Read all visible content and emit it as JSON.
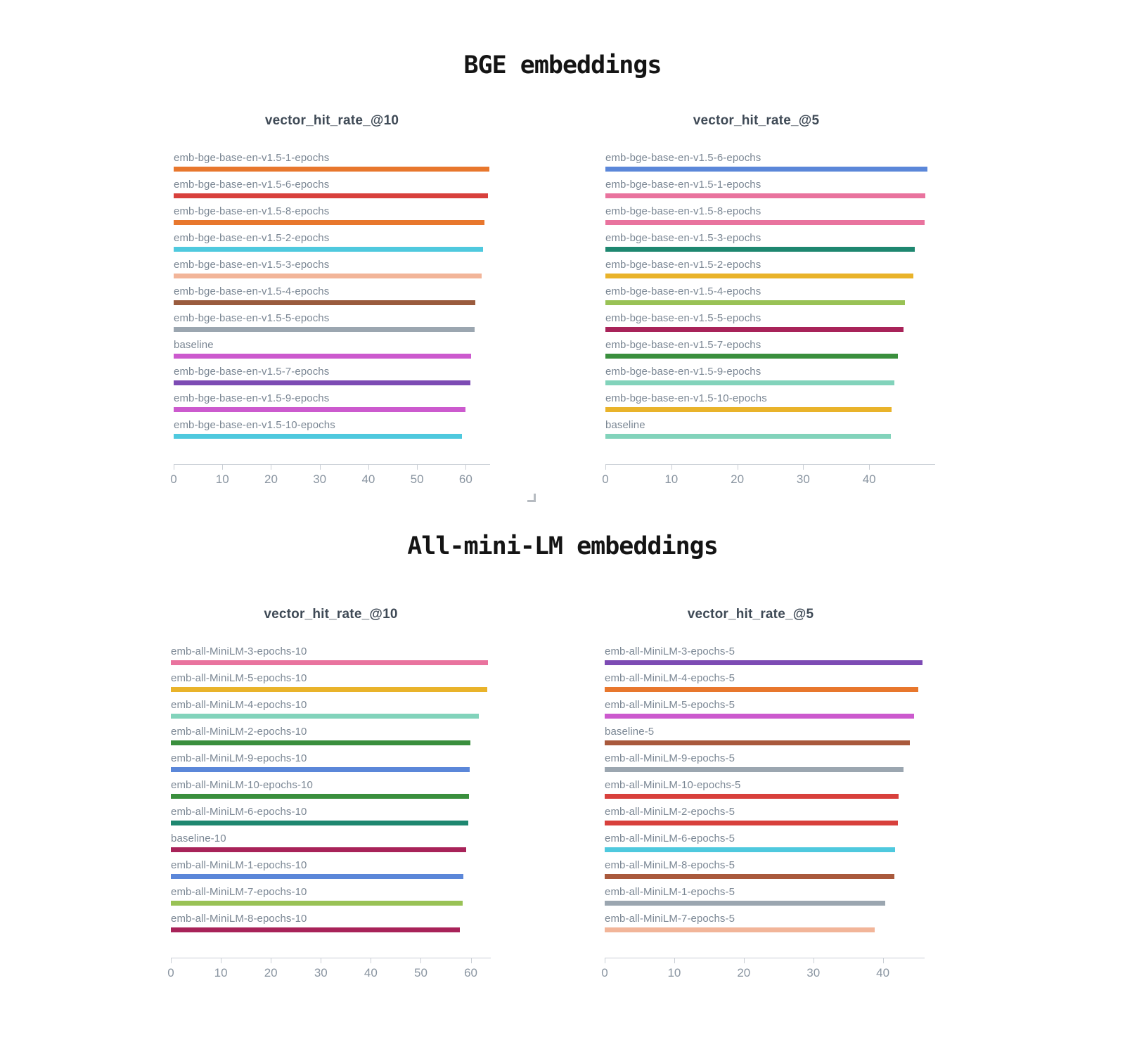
{
  "sections": [
    {
      "title": "BGE embeddings"
    },
    {
      "title": "All-mini-LM embeddings"
    }
  ],
  "resize_handle_icon": "corner-bracket",
  "chart_data": [
    {
      "type": "bar",
      "orientation": "horizontal",
      "section": "BGE embeddings",
      "title": "vector_hit_rate_@10",
      "categories": [
        "emb-bge-base-en-v1.5-1-epochs",
        "emb-bge-base-en-v1.5-6-epochs",
        "emb-bge-base-en-v1.5-8-epochs",
        "emb-bge-base-en-v1.5-2-epochs",
        "emb-bge-base-en-v1.5-3-epochs",
        "emb-bge-base-en-v1.5-4-epochs",
        "emb-bge-base-en-v1.5-5-epochs",
        "baseline",
        "emb-bge-base-en-v1.5-7-epochs",
        "emb-bge-base-en-v1.5-9-epochs",
        "emb-bge-base-en-v1.5-10-epochs"
      ],
      "values": [
        64.8,
        64.5,
        63.8,
        63.5,
        63.2,
        62.0,
        61.8,
        61.1,
        60.9,
        59.9,
        59.2
      ],
      "colors": [
        "#e8772d",
        "#d8403c",
        "#e8772d",
        "#4fc9de",
        "#f2b599",
        "#9a5b3d",
        "#9ba6b0",
        "#cc5ace",
        "#7d4bb4",
        "#cc5ace",
        "#4fc9de"
      ],
      "xlim": [
        0,
        65
      ],
      "ticks": [
        0,
        10,
        20,
        30,
        40,
        50,
        60
      ],
      "grid": false,
      "legend": false
    },
    {
      "type": "bar",
      "orientation": "horizontal",
      "section": "BGE embeddings",
      "title": "vector_hit_rate_@5",
      "categories": [
        "emb-bge-base-en-v1.5-6-epochs",
        "emb-bge-base-en-v1.5-1-epochs",
        "emb-bge-base-en-v1.5-8-epochs",
        "emb-bge-base-en-v1.5-3-epochs",
        "emb-bge-base-en-v1.5-2-epochs",
        "emb-bge-base-en-v1.5-4-epochs",
        "emb-bge-base-en-v1.5-5-epochs",
        "emb-bge-base-en-v1.5-7-epochs",
        "emb-bge-base-en-v1.5-9-epochs",
        "emb-bge-base-en-v1.5-10-epochs",
        "baseline"
      ],
      "values": [
        48.8,
        48.5,
        48.4,
        46.9,
        46.7,
        45.4,
        45.2,
        44.3,
        43.8,
        43.4,
        43.3
      ],
      "colors": [
        "#5b87d9",
        "#e9739e",
        "#e9739e",
        "#1e8770",
        "#e9b32a",
        "#99c255",
        "#a82359",
        "#3a8f3d",
        "#82d3bb",
        "#e9b32a",
        "#82d3bb"
      ],
      "xlim": [
        0,
        50
      ],
      "ticks": [
        0,
        10,
        20,
        30,
        40
      ],
      "grid": false,
      "legend": false
    },
    {
      "type": "bar",
      "orientation": "horizontal",
      "section": "All-mini-LM embeddings",
      "title": "vector_hit_rate_@10",
      "categories": [
        "emb-all-MiniLM-3-epochs-10",
        "emb-all-MiniLM-5-epochs-10",
        "emb-all-MiniLM-4-epochs-10",
        "emb-all-MiniLM-2-epochs-10",
        "emb-all-MiniLM-9-epochs-10",
        "emb-all-MiniLM-10-epochs-10",
        "emb-all-MiniLM-6-epochs-10",
        "baseline-10",
        "emb-all-MiniLM-1-epochs-10",
        "emb-all-MiniLM-7-epochs-10",
        "emb-all-MiniLM-8-epochs-10"
      ],
      "values": [
        63.4,
        63.3,
        61.6,
        59.9,
        59.8,
        59.6,
        59.5,
        59.1,
        58.5,
        58.4,
        57.8
      ],
      "colors": [
        "#e9739e",
        "#e9b32a",
        "#82d3bb",
        "#3a8f3d",
        "#5b87d9",
        "#3a8f3d",
        "#1e8770",
        "#a82359",
        "#5b87d9",
        "#99c255",
        "#a82359"
      ],
      "xlim": [
        0,
        64
      ],
      "ticks": [
        0,
        10,
        20,
        30,
        40,
        50,
        60
      ],
      "grid": false,
      "legend": false
    },
    {
      "type": "bar",
      "orientation": "horizontal",
      "section": "All-mini-LM embeddings",
      "title": "vector_hit_rate_@5",
      "categories": [
        "emb-all-MiniLM-3-epochs-5",
        "emb-all-MiniLM-4-epochs-5",
        "emb-all-MiniLM-5-epochs-5",
        "baseline-5",
        "emb-all-MiniLM-9-epochs-5",
        "emb-all-MiniLM-10-epochs-5",
        "emb-all-MiniLM-2-epochs-5",
        "emb-all-MiniLM-6-epochs-5",
        "emb-all-MiniLM-8-epochs-5",
        "emb-all-MiniLM-1-epochs-5",
        "emb-all-MiniLM-7-epochs-5"
      ],
      "values": [
        45.7,
        45.1,
        44.5,
        43.9,
        43.0,
        42.3,
        42.2,
        41.8,
        41.7,
        40.3,
        38.8
      ],
      "colors": [
        "#7d4bb4",
        "#e8772d",
        "#cc5ace",
        "#a9593c",
        "#9ba6b0",
        "#d8403c",
        "#d8403c",
        "#4fc9de",
        "#a9593c",
        "#9ba6b0",
        "#f2b599"
      ],
      "xlim": [
        0,
        46
      ],
      "ticks": [
        0,
        10,
        20,
        30,
        40
      ],
      "grid": false,
      "legend": false
    }
  ]
}
